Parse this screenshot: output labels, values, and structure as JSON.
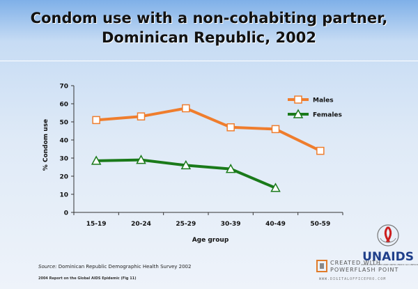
{
  "title_lines": [
    "Condom use with a non-cohabiting partner,",
    "Dominican Republic, 2002"
  ],
  "chart_data": {
    "type": "line",
    "categories": [
      "15-19",
      "20-24",
      "25-29",
      "30-39",
      "40-49",
      "50-59"
    ],
    "series": [
      {
        "name": "Males",
        "values": [
          51,
          53,
          57.5,
          47,
          46,
          34
        ],
        "color": "#ef7d2d",
        "marker": "square"
      },
      {
        "name": "Females",
        "values": [
          28.5,
          29,
          26,
          24,
          13.5,
          null
        ],
        "color": "#1a7a1a",
        "marker": "triangle"
      }
    ],
    "ylim": [
      0,
      70
    ],
    "yticks": [
      "0",
      "10",
      "20",
      "30",
      "40",
      "50",
      "60",
      "70"
    ],
    "xlabel": "Age group",
    "ylabel": "% Condom use",
    "legend_position": "top-right",
    "grid": false
  },
  "source_label": "Source:",
  "source_text": " Dominican Republic Demographic Health Survey 2002",
  "footnote": "2004 Report on the Global AIDS Epidemic (Fig 11)",
  "logo": {
    "text": "UNAIDS",
    "subtext": "UNHCR UNICEF WFP UNDP UNFPA UNODC ILO UNESCO WHO WORLD BANK"
  },
  "watermark": {
    "line1": "CREATED WITH",
    "line2": "POWERFLASH POINT",
    "line3": "WWW.DIGITALOFFICEPRO.COM"
  }
}
